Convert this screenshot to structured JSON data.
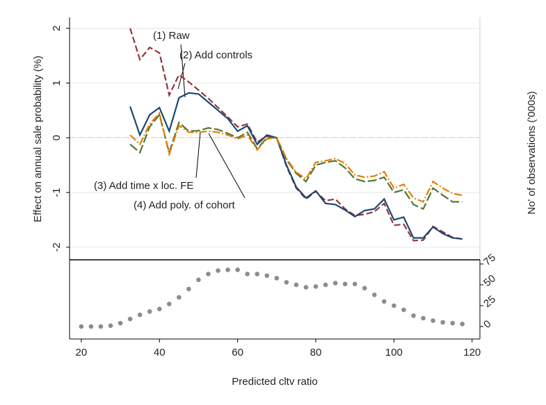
{
  "chart_data": [
    {
      "type": "line",
      "ylabel": "Effect on annual sale probability (%)",
      "xlim": [
        17,
        122
      ],
      "ylim": [
        -2.23,
        2.2
      ],
      "yticks": [
        -2,
        -1,
        0,
        1,
        2
      ],
      "grid": true,
      "reference_line": 0,
      "annotations": [
        "(1) Raw",
        "(2) Add controls",
        "(3) Add time x loc. FE",
        "(4) Add poly. of cohort"
      ],
      "x": [
        32.5,
        35,
        37.5,
        40,
        42.5,
        45,
        47.5,
        50,
        52.5,
        55,
        57.5,
        60,
        62.5,
        65,
        67.5,
        70,
        72.5,
        75,
        77.5,
        80,
        82.5,
        85,
        87.5,
        90,
        92.5,
        95,
        97.5,
        100,
        102.5,
        105,
        107.5,
        110,
        112.5,
        115,
        117.5
      ],
      "series": [
        {
          "color": "#90353b",
          "line_style": "dash",
          "values": [
            2.0,
            1.43,
            1.65,
            1.55,
            0.78,
            1.15,
            1.02,
            0.87,
            0.72,
            0.55,
            0.38,
            0.2,
            0.25,
            -0.08,
            0.03,
            0.0,
            -0.52,
            -0.92,
            -1.12,
            -0.98,
            -1.15,
            -1.12,
            -1.3,
            -1.42,
            -1.4,
            -1.35,
            -1.2,
            -1.6,
            -1.58,
            -1.88,
            -1.87,
            -1.62,
            -1.72,
            -1.82,
            -1.85
          ]
        },
        {
          "color": "#1a476f",
          "line_style": "solid",
          "values": [
            0.57,
            0.05,
            0.42,
            0.55,
            0.12,
            0.73,
            0.82,
            0.8,
            0.65,
            0.5,
            0.35,
            0.12,
            0.22,
            -0.12,
            0.05,
            0.0,
            -0.5,
            -0.9,
            -1.1,
            -0.97,
            -1.2,
            -1.22,
            -1.32,
            -1.44,
            -1.33,
            -1.3,
            -1.12,
            -1.5,
            -1.45,
            -1.83,
            -1.83,
            -1.63,
            -1.75,
            -1.83,
            -1.85
          ]
        },
        {
          "color": "#55752f",
          "line_style": "longdash",
          "values": [
            -0.12,
            -0.27,
            0.2,
            0.42,
            -0.27,
            0.28,
            0.12,
            0.13,
            0.18,
            0.15,
            0.08,
            0.0,
            0.1,
            -0.2,
            0.0,
            0.0,
            -0.4,
            -0.65,
            -0.8,
            -0.5,
            -0.45,
            -0.42,
            -0.55,
            -0.75,
            -0.8,
            -0.78,
            -0.72,
            -1.0,
            -0.95,
            -1.22,
            -1.3,
            -0.92,
            -1.05,
            -1.17,
            -1.17
          ]
        },
        {
          "color": "#e37e00",
          "line_style": "dashdot",
          "values": [
            0.05,
            -0.12,
            0.25,
            0.45,
            -0.3,
            0.22,
            0.1,
            0.1,
            0.12,
            0.1,
            0.05,
            -0.02,
            0.05,
            -0.22,
            -0.02,
            0.0,
            -0.38,
            -0.63,
            -0.75,
            -0.45,
            -0.42,
            -0.38,
            -0.47,
            -0.68,
            -0.72,
            -0.7,
            -0.62,
            -0.92,
            -0.85,
            -1.1,
            -1.17,
            -0.8,
            -0.92,
            -1.02,
            -1.05
          ]
        }
      ]
    },
    {
      "type": "scatter",
      "xlabel": "Predicted cltv ratio",
      "ylabel": "No' of observations ('000s)",
      "xlim": [
        17,
        122
      ],
      "xticks": [
        20,
        40,
        60,
        80,
        100,
        120
      ],
      "ylim": [
        -15,
        80
      ],
      "yticks": [
        0,
        25,
        50,
        75
      ],
      "color": "#8c8c8c",
      "x": [
        20,
        22.5,
        25,
        27.5,
        30,
        32.5,
        35,
        37.5,
        40,
        42.5,
        45,
        47.5,
        50,
        52.5,
        55,
        57.5,
        60,
        62.5,
        65,
        67.5,
        70,
        72.5,
        75,
        77.5,
        80,
        82.5,
        85,
        87.5,
        90,
        92.5,
        95,
        97.5,
        100,
        102.5,
        105,
        107.5,
        110,
        112.5,
        115,
        117.5
      ],
      "values": [
        0,
        0,
        0,
        1,
        4,
        9,
        14,
        18,
        21,
        27,
        35,
        45,
        56,
        63,
        67,
        68,
        68,
        63,
        63,
        61,
        58,
        53,
        50,
        47,
        48,
        50,
        52,
        51,
        51,
        46,
        38,
        30,
        25,
        20,
        13,
        10,
        7,
        5,
        4,
        3
      ]
    }
  ]
}
